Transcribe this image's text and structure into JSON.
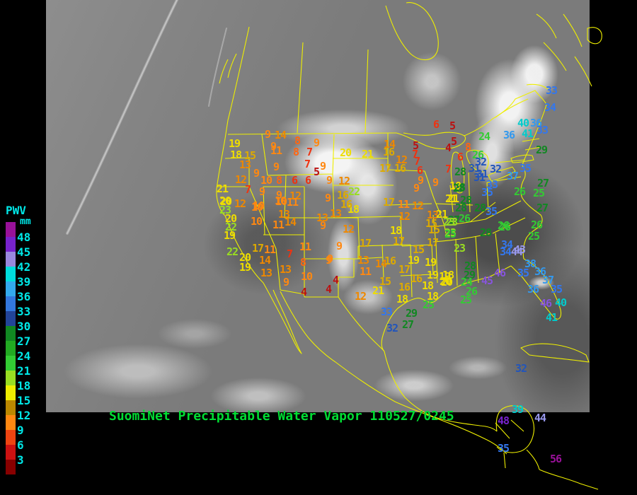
{
  "title": {
    "text": "SuomiNet Precipitable Water Vapor 110527/0245",
    "color": "#00dd33"
  },
  "legend": {
    "title": "PWV",
    "unit": "mm",
    "text_color": "#00e8e8",
    "tick_labels": [
      "48",
      "45",
      "42",
      "39",
      "36",
      "33",
      "30",
      "27",
      "24",
      "21",
      "18",
      "15",
      "12",
      "9",
      "6",
      "3"
    ],
    "swatch_colors": [
      "#991199",
      "#7722cc",
      "#9988dd",
      "#00dddd",
      "#33aaee",
      "#3377dd",
      "#224499",
      "#118822",
      "#22aa22",
      "#33cc33",
      "#99dd22",
      "#eeee00",
      "#bb8800",
      "#ff8811",
      "#ee4411",
      "#cc1111",
      "#880000"
    ]
  },
  "map": {
    "border_color": "#eeee00"
  },
  "value_color_scale": [
    [
      5,
      "#bb1111"
    ],
    [
      7,
      "#ee3311"
    ],
    [
      8,
      "#ff6611"
    ],
    [
      11,
      "#ff8811"
    ],
    [
      14,
      "#ee8800"
    ],
    [
      17,
      "#ddaa00"
    ],
    [
      21,
      "#eedd00"
    ],
    [
      23,
      "#99dd22"
    ],
    [
      26,
      "#33cc33"
    ],
    [
      29,
      "#118822"
    ],
    [
      32,
      "#2255bb"
    ],
    [
      35,
      "#3377ee"
    ],
    [
      38,
      "#3399ee"
    ],
    [
      41,
      "#00cccc"
    ],
    [
      44,
      "#9999ee"
    ],
    [
      47,
      "#8855dd"
    ],
    [
      51,
      "#7722cc"
    ],
    [
      99,
      "#991199"
    ]
  ],
  "stations": [
    [
      9,
      378,
      190
    ],
    [
      14,
      396,
      191
    ],
    [
      8,
      420,
      199
    ],
    [
      9,
      447,
      202
    ],
    [
      19,
      331,
      203
    ],
    [
      9,
      386,
      207
    ],
    [
      11,
      390,
      213
    ],
    [
      8,
      418,
      215
    ],
    [
      7,
      437,
      215
    ],
    [
      18,
      333,
      219
    ],
    [
      15,
      353,
      220
    ],
    [
      13,
      346,
      233
    ],
    [
      7,
      434,
      232
    ],
    [
      9,
      390,
      236
    ],
    [
      9,
      456,
      235
    ],
    [
      5,
      447,
      243
    ],
    [
      9,
      362,
      245
    ],
    [
      12,
      340,
      254
    ],
    [
      10,
      376,
      255
    ],
    [
      8,
      394,
      255
    ],
    [
      6,
      416,
      255
    ],
    [
      6,
      435,
      255
    ],
    [
      9,
      465,
      255
    ],
    [
      7,
      350,
      268
    ],
    [
      9,
      370,
      271
    ],
    [
      9,
      394,
      276
    ],
    [
      12,
      417,
      277
    ],
    [
      21,
      314,
      267
    ],
    [
      20,
      319,
      285
    ],
    [
      10,
      365,
      291
    ],
    [
      10,
      397,
      285
    ],
    [
      11,
      413,
      286
    ],
    [
      12,
      339,
      288
    ],
    [
      6,
      616,
      176
    ],
    [
      5,
      639,
      178
    ],
    [
      5,
      641,
      200
    ],
    [
      5,
      587,
      206
    ],
    [
      7,
      586,
      218
    ],
    [
      4,
      633,
      209
    ],
    [
      14,
      550,
      204
    ],
    [
      16,
      549,
      215
    ],
    [
      20,
      488,
      216
    ],
    [
      21,
      519,
      218
    ],
    [
      24,
      684,
      193
    ],
    [
      8,
      661,
      208
    ],
    [
      12,
      567,
      226
    ],
    [
      17,
      544,
      238
    ],
    [
      16,
      565,
      238
    ],
    [
      7,
      589,
      228
    ],
    [
      26,
      675,
      219
    ],
    [
      6,
      650,
      222
    ],
    [
      7,
      633,
      239
    ],
    [
      6,
      593,
      241
    ],
    [
      32,
      679,
      229
    ],
    [
      12,
      486,
      256
    ],
    [
      9,
      594,
      255
    ],
    [
      9,
      588,
      266
    ],
    [
      9,
      615,
      258
    ],
    [
      28,
      650,
      243
    ],
    [
      28,
      649,
      265
    ],
    [
      31,
      681,
      246
    ],
    [
      22,
      500,
      271
    ],
    [
      21,
      640,
      281
    ],
    [
      17,
      549,
      286
    ],
    [
      11,
      570,
      289
    ],
    [
      12,
      590,
      291
    ],
    [
      18,
      499,
      296
    ],
    [
      18,
      643,
      263
    ],
    [
      16,
      484,
      276
    ],
    [
      9,
      463,
      280
    ],
    [
      16,
      489,
      289
    ],
    [
      13,
      455,
      308
    ],
    [
      13,
      474,
      302
    ],
    [
      12,
      571,
      306
    ],
    [
      33,
      779,
      128
    ],
    [
      34,
      777,
      152
    ],
    [
      40,
      739,
      174
    ],
    [
      36,
      757,
      174
    ],
    [
      36,
      719,
      191
    ],
    [
      41,
      745,
      189
    ],
    [
      33,
      766,
      184
    ],
    [
      29,
      765,
      212
    ],
    [
      35,
      742,
      238
    ],
    [
      31,
      670,
      238
    ],
    [
      32,
      700,
      239
    ],
    [
      37,
      724,
      249
    ],
    [
      31,
      677,
      251
    ],
    [
      33,
      695,
      261
    ],
    [
      28,
      648,
      266
    ],
    [
      27,
      767,
      259
    ],
    [
      26,
      734,
      271
    ],
    [
      25,
      761,
      273
    ],
    [
      35,
      688,
      272
    ],
    [
      27,
      766,
      294
    ],
    [
      26,
      711,
      319
    ],
    [
      26,
      758,
      318
    ],
    [
      25,
      754,
      334
    ],
    [
      34,
      716,
      346
    ],
    [
      34,
      714,
      356
    ],
    [
      44,
      730,
      356
    ],
    [
      46,
      706,
      386
    ],
    [
      38,
      749,
      373
    ],
    [
      35,
      739,
      386
    ],
    [
      36,
      763,
      384
    ],
    [
      21,
      637,
      281
    ],
    [
      28,
      658,
      283
    ],
    [
      28,
      651,
      294
    ],
    [
      28,
      678,
      294
    ],
    [
      35,
      694,
      299
    ],
    [
      26,
      656,
      309
    ],
    [
      27,
      641,
      311
    ],
    [
      23,
      634,
      314
    ],
    [
      15,
      613,
      325
    ],
    [
      23,
      636,
      329
    ],
    [
      28,
      686,
      329
    ],
    [
      26,
      713,
      321
    ],
    [
      43,
      734,
      353
    ],
    [
      23,
      649,
      351
    ],
    [
      28,
      664,
      376
    ],
    [
      29,
      663,
      389
    ],
    [
      18,
      633,
      389
    ],
    [
      20,
      629,
      398
    ],
    [
      45,
      688,
      397
    ],
    [
      24,
      659,
      399
    ],
    [
      26,
      666,
      412
    ],
    [
      37,
      774,
      396
    ],
    [
      36,
      753,
      409
    ],
    [
      35,
      786,
      409
    ],
    [
      46,
      771,
      429
    ],
    [
      40,
      792,
      428
    ],
    [
      41,
      779,
      449
    ],
    [
      32,
      736,
      521
    ],
    [
      20,
      318,
      284
    ],
    [
      23,
      318,
      297
    ],
    [
      20,
      326,
      309
    ],
    [
      22,
      326,
      321
    ],
    [
      19,
      324,
      333
    ],
    [
      10,
      363,
      293
    ],
    [
      10,
      362,
      313
    ],
    [
      10,
      396,
      284
    ],
    [
      13,
      401,
      303
    ],
    [
      11,
      393,
      318
    ],
    [
      14,
      410,
      314
    ],
    [
      9,
      456,
      319
    ],
    [
      17,
      364,
      351
    ],
    [
      11,
      381,
      353
    ],
    [
      22,
      328,
      356
    ],
    [
      20,
      346,
      364
    ],
    [
      19,
      346,
      378
    ],
    [
      14,
      374,
      368
    ],
    [
      7,
      409,
      359
    ],
    [
      11,
      431,
      349
    ],
    [
      8,
      428,
      371
    ],
    [
      13,
      376,
      386
    ],
    [
      13,
      403,
      381
    ],
    [
      9,
      404,
      399
    ],
    [
      10,
      433,
      391
    ],
    [
      9,
      466,
      366
    ],
    [
      4,
      474,
      396
    ],
    [
      4,
      429,
      413
    ],
    [
      4,
      464,
      409
    ],
    [
      12,
      492,
      324
    ],
    [
      13,
      611,
      304
    ],
    [
      15,
      609,
      316
    ],
    [
      21,
      624,
      303
    ],
    [
      23,
      638,
      314
    ],
    [
      25,
      636,
      331
    ],
    [
      18,
      559,
      326
    ],
    [
      9,
      479,
      348
    ],
    [
      9,
      464,
      368
    ],
    [
      17,
      516,
      344
    ],
    [
      17,
      563,
      341
    ],
    [
      17,
      611,
      343
    ],
    [
      15,
      591,
      353
    ],
    [
      13,
      513,
      368
    ],
    [
      14,
      538,
      373
    ],
    [
      16,
      551,
      369
    ],
    [
      19,
      584,
      368
    ],
    [
      19,
      608,
      371
    ],
    [
      11,
      516,
      384
    ],
    [
      17,
      571,
      381
    ],
    [
      15,
      544,
      398
    ],
    [
      16,
      588,
      394
    ],
    [
      19,
      611,
      389
    ],
    [
      19,
      628,
      391
    ],
    [
      16,
      571,
      406
    ],
    [
      18,
      604,
      404
    ],
    [
      20,
      631,
      399
    ],
    [
      21,
      534,
      411
    ],
    [
      12,
      509,
      419
    ],
    [
      18,
      568,
      423
    ],
    [
      18,
      611,
      419
    ],
    [
      25,
      605,
      431
    ],
    [
      25,
      658,
      424
    ],
    [
      33,
      546,
      441
    ],
    [
      29,
      581,
      443
    ],
    [
      27,
      576,
      459
    ],
    [
      32,
      554,
      464
    ],
    [
      39,
      731,
      579
    ],
    [
      48,
      711,
      595
    ],
    [
      44,
      763,
      591
    ],
    [
      35,
      711,
      634
    ],
    [
      56,
      785,
      649
    ]
  ]
}
